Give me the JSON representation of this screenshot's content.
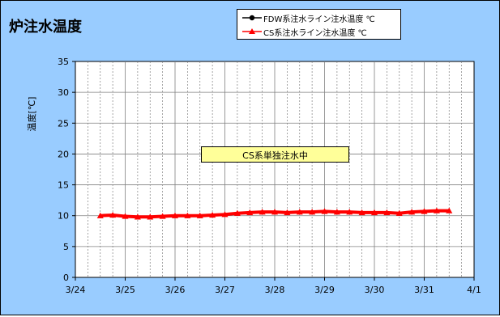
{
  "chart_data": {
    "type": "line",
    "title": "炉注水温度",
    "ylabel": "温度[℃]",
    "xlabel": "",
    "ylim": [
      0,
      35
    ],
    "y_ticks": [
      "0",
      "5",
      "10",
      "15",
      "20",
      "25",
      "30",
      "35"
    ],
    "x_ticks": [
      "3/24",
      "3/25",
      "3/26",
      "3/27",
      "3/28",
      "3/29",
      "3/30",
      "3/31",
      "4/1"
    ],
    "x_range": [
      "3/24",
      "4/1"
    ],
    "grid": "on",
    "legend_placement": "top-right",
    "annotation": "CS系単独注水中",
    "series": [
      {
        "name": "FDW系注水ライン注水温度 ℃",
        "color": "#000000",
        "marker": "circle",
        "x": [],
        "y": []
      },
      {
        "name": "CS系注水ライン注水温度 ℃",
        "color": "#FF0000",
        "marker": "triangle",
        "x": [
          "3/24 12:00",
          "3/24 18:00",
          "3/25 00:00",
          "3/25 06:00",
          "3/25 12:00",
          "3/25 18:00",
          "3/26 00:00",
          "3/26 06:00",
          "3/26 12:00",
          "3/26 18:00",
          "3/27 00:00",
          "3/27 06:00",
          "3/27 12:00",
          "3/27 18:00",
          "3/28 00:00",
          "3/28 06:00",
          "3/28 12:00",
          "3/28 18:00",
          "3/29 00:00",
          "3/29 06:00",
          "3/29 12:00",
          "3/29 18:00",
          "3/30 00:00",
          "3/30 06:00",
          "3/30 12:00",
          "3/30 18:00",
          "3/31 00:00",
          "3/31 06:00",
          "3/31 12:00"
        ],
        "y": [
          10.0,
          10.1,
          9.9,
          9.8,
          9.8,
          9.9,
          10.0,
          10.0,
          10.0,
          10.1,
          10.2,
          10.4,
          10.5,
          10.6,
          10.6,
          10.5,
          10.6,
          10.6,
          10.7,
          10.6,
          10.6,
          10.5,
          10.5,
          10.5,
          10.4,
          10.6,
          10.7,
          10.8,
          10.8
        ]
      }
    ]
  }
}
